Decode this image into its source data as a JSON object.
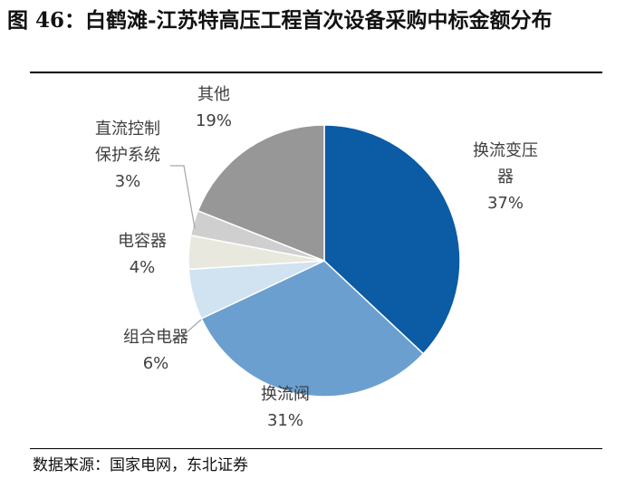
{
  "title": "图 46：白鹤滩-江苏特高压工程首次设备采购中标金额分布",
  "source": "数据来源：国家电网，东北证券",
  "chart_data": {
    "type": "pie",
    "title": "图 46：白鹤滩-江苏特高压工程首次设备采购中标金额分布",
    "slices": [
      {
        "name": "换流变压器",
        "label_lines": [
          "换流变压",
          "器"
        ],
        "value": 37,
        "display": "37%",
        "color": "#0b5ba5"
      },
      {
        "name": "换流阀",
        "label_lines": [
          "换流阀"
        ],
        "value": 31,
        "display": "31%",
        "color": "#6b9fcf"
      },
      {
        "name": "组合电器",
        "label_lines": [
          "组合电器"
        ],
        "value": 6,
        "display": "6%",
        "color": "#d1e2f1"
      },
      {
        "name": "电容器",
        "label_lines": [
          "电容器"
        ],
        "value": 4,
        "display": "4%",
        "color": "#e9e8df"
      },
      {
        "name": "直流控制保护系统",
        "label_lines": [
          "直流控制",
          "保护系统"
        ],
        "value": 3,
        "display": "3%",
        "color": "#cfcfcf"
      },
      {
        "name": "其他",
        "label_lines": [
          "其他"
        ],
        "value": 19,
        "display": "19%",
        "color": "#979797"
      }
    ],
    "start_angle": "12 o'clock",
    "direction": "clockwise",
    "legend": "none"
  }
}
